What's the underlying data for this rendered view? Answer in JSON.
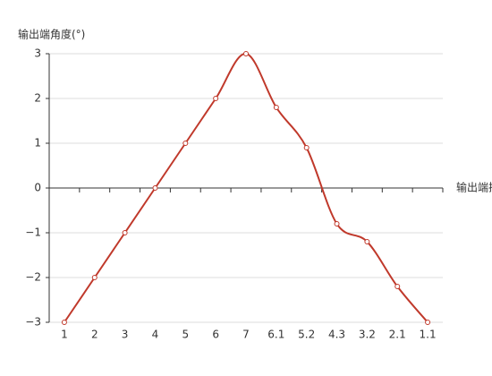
{
  "chart_data": {
    "type": "line",
    "y_axis_label": "输出端角度(°)",
    "x_axis_label": "输出端扭矩",
    "categories": [
      "1",
      "2",
      "3",
      "4",
      "5",
      "6",
      "7",
      "6.1",
      "5.2",
      "4.3",
      "3.2",
      "2.1",
      "1.1"
    ],
    "values": [
      -3,
      -2,
      -1,
      0,
      1,
      2,
      3,
      1.8,
      0.9,
      -0.8,
      -1.2,
      -2.2,
      -3
    ],
    "color": "#c0392b",
    "smooth": true,
    "grid": true,
    "ylim": [
      -3,
      3
    ],
    "yticks": [
      {
        "value": -3,
        "label": "−3"
      },
      {
        "value": -2,
        "label": "−2"
      },
      {
        "value": -1,
        "label": "−1"
      },
      0,
      1,
      2,
      3
    ]
  }
}
